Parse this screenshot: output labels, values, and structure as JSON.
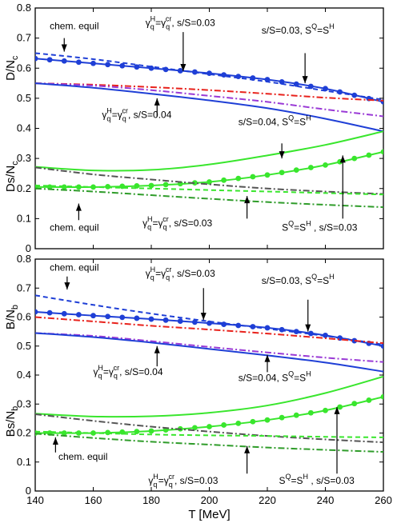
{
  "chart_data": [
    {
      "type": "line",
      "panel": "top",
      "xlim": [
        140,
        260
      ],
      "ylim": [
        0,
        0.8
      ],
      "xticks": [
        140,
        160,
        180,
        200,
        220,
        240,
        260
      ],
      "yticks": [
        0,
        0.1,
        0.2,
        0.3,
        0.4,
        0.5,
        0.6,
        0.7,
        0.8
      ],
      "ylabel_upper": "D/N",
      "ylabel_upper_sub": "c",
      "ylabel_lower": "Ds/N",
      "ylabel_lower_sub": "c",
      "show_xticklabels": false,
      "series": [
        {
          "color": "#1f3fd6",
          "dash": "6,4",
          "markers": false,
          "x": [
            140,
            160,
            180,
            200,
            220,
            240,
            260
          ],
          "y": [
            0.65,
            0.63,
            0.605,
            0.58,
            0.555,
            0.525,
            0.495
          ]
        },
        {
          "color": "#1f3fd6",
          "dash": "",
          "markers": true,
          "x": [
            140,
            160,
            180,
            200,
            220,
            240,
            260
          ],
          "y": [
            0.632,
            0.616,
            0.6,
            0.583,
            0.562,
            0.532,
            0.488
          ]
        },
        {
          "color": "#e8221c",
          "dash": "8,3,2,3",
          "markers": false,
          "x": [
            140,
            160,
            180,
            200,
            220,
            240,
            260
          ],
          "y": [
            0.55,
            0.545,
            0.537,
            0.527,
            0.515,
            0.502,
            0.492
          ]
        },
        {
          "color": "#9a3ad6",
          "dash": "8,3,2,3",
          "markers": false,
          "x": [
            140,
            160,
            180,
            200,
            220,
            240,
            260
          ],
          "y": [
            0.55,
            0.542,
            0.527,
            0.508,
            0.488,
            0.463,
            0.44
          ]
        },
        {
          "color": "#1f3fd6",
          "dash": "",
          "markers": false,
          "x": [
            140,
            160,
            180,
            200,
            220,
            240,
            260
          ],
          "y": [
            0.55,
            0.535,
            0.515,
            0.493,
            0.467,
            0.432,
            0.39
          ]
        },
        {
          "color": "#39e62d",
          "dash": "",
          "markers": false,
          "x": [
            140,
            160,
            180,
            200,
            220,
            240,
            260
          ],
          "y": [
            0.272,
            0.26,
            0.262,
            0.28,
            0.31,
            0.345,
            0.39
          ]
        },
        {
          "color": "#39e62d",
          "dash": "",
          "markers": true,
          "x": [
            140,
            160,
            180,
            200,
            220,
            240,
            260
          ],
          "y": [
            0.205,
            0.205,
            0.21,
            0.222,
            0.245,
            0.278,
            0.322
          ]
        },
        {
          "color": "#555555",
          "dash": "8,3,2,3",
          "markers": false,
          "x": [
            140,
            160,
            180,
            200,
            220,
            240,
            260
          ],
          "y": [
            0.27,
            0.247,
            0.23,
            0.214,
            0.2,
            0.19,
            0.182
          ]
        },
        {
          "color": "#39e62d",
          "dash": "6,4",
          "markers": false,
          "x": [
            140,
            160,
            180,
            200,
            220,
            240,
            260
          ],
          "y": [
            0.21,
            0.205,
            0.2,
            0.195,
            0.19,
            0.185,
            0.18
          ]
        },
        {
          "color": "#2f9c2a",
          "dash": "8,3,2,3",
          "markers": false,
          "x": [
            140,
            160,
            180,
            200,
            220,
            240,
            260
          ],
          "y": [
            0.2,
            0.19,
            0.178,
            0.166,
            0.155,
            0.146,
            0.138
          ]
        }
      ],
      "annotations": [
        {
          "text": "chem. equil",
          "x": 145,
          "y": 0.73,
          "ax": 150,
          "ay1": 0.7,
          "ay2": 0.655
        },
        {
          "text": "γ_q^H=γ_q^cr, s/S=0.03",
          "x": 178,
          "y": 0.74,
          "ax": 191,
          "ay1": 0.72,
          "ay2": 0.59
        },
        {
          "text": "s/S=0.03, S^Q=S^H",
          "x": 218,
          "y": 0.715,
          "ax": 233,
          "ay1": 0.65,
          "ay2": 0.55
        },
        {
          "text": "γ_q^H=γ_q^cr, s/S=0.04",
          "x": 163,
          "y": 0.435,
          "ax": 182,
          "ay1": 0.44,
          "ay2": 0.5
        },
        {
          "text": "s/S=0.04, S^Q=S^H",
          "x": 210,
          "y": 0.41,
          "ax": 225,
          "ay1": 0.35,
          "ay2": 0.3
        },
        {
          "text": "chem. equil",
          "x": 145,
          "y": 0.06,
          "ax": 155,
          "ay1": 0.095,
          "ay2": 0.15
        },
        {
          "text": "γ_q^H=γ_q^cr, s/S=0.03",
          "x": 177,
          "y": 0.075,
          "ax": 213,
          "ay1": 0.1,
          "ay2": 0.175
        },
        {
          "text": "S^Q=S^H , s/S=0.03",
          "x": 225,
          "y": 0.06,
          "ax": 246,
          "ay1": 0.1,
          "ay2": 0.31
        }
      ]
    },
    {
      "type": "line",
      "panel": "bottom",
      "xlim": [
        140,
        260
      ],
      "ylim": [
        0,
        0.8
      ],
      "xticks": [
        140,
        160,
        180,
        200,
        220,
        240,
        260
      ],
      "yticks": [
        0,
        0.1,
        0.2,
        0.3,
        0.4,
        0.5,
        0.6,
        0.7,
        0.8
      ],
      "ylabel_upper": "B/N",
      "ylabel_upper_sub": "b",
      "ylabel_lower": "Bs/N",
      "ylabel_lower_sub": "b",
      "xlabel": "T [MeV]",
      "show_xticklabels": true,
      "series": [
        {
          "color": "#1f3fd6",
          "dash": "6,4",
          "markers": false,
          "x": [
            140,
            160,
            180,
            200,
            220,
            240,
            260
          ],
          "y": [
            0.675,
            0.642,
            0.612,
            0.585,
            0.56,
            0.535,
            0.505
          ]
        },
        {
          "color": "#1f3fd6",
          "dash": "",
          "markers": true,
          "x": [
            140,
            160,
            180,
            200,
            220,
            240,
            260
          ],
          "y": [
            0.618,
            0.605,
            0.593,
            0.579,
            0.563,
            0.537,
            0.5
          ]
        },
        {
          "color": "#e8221c",
          "dash": "8,3,2,3",
          "markers": false,
          "x": [
            140,
            160,
            180,
            200,
            220,
            240,
            260
          ],
          "y": [
            0.6,
            0.585,
            0.57,
            0.557,
            0.543,
            0.527,
            0.51
          ]
        },
        {
          "color": "#9a3ad6",
          "dash": "8,3,2,3",
          "markers": false,
          "x": [
            140,
            160,
            180,
            200,
            220,
            240,
            260
          ],
          "y": [
            0.545,
            0.535,
            0.517,
            0.497,
            0.478,
            0.46,
            0.445
          ]
        },
        {
          "color": "#1f3fd6",
          "dash": "",
          "markers": false,
          "x": [
            140,
            160,
            180,
            200,
            220,
            240,
            260
          ],
          "y": [
            0.545,
            0.531,
            0.512,
            0.49,
            0.468,
            0.443,
            0.412
          ]
        },
        {
          "color": "#39e62d",
          "dash": "",
          "markers": false,
          "x": [
            140,
            160,
            180,
            200,
            220,
            240,
            260
          ],
          "y": [
            0.267,
            0.257,
            0.258,
            0.27,
            0.295,
            0.338,
            0.395
          ]
        },
        {
          "color": "#39e62d",
          "dash": "",
          "markers": true,
          "x": [
            140,
            160,
            180,
            200,
            220,
            240,
            260
          ],
          "y": [
            0.2,
            0.2,
            0.207,
            0.222,
            0.245,
            0.278,
            0.325
          ]
        },
        {
          "color": "#555555",
          "dash": "8,3,2,3",
          "markers": false,
          "x": [
            140,
            160,
            180,
            200,
            220,
            240,
            260
          ],
          "y": [
            0.265,
            0.242,
            0.222,
            0.205,
            0.19,
            0.178,
            0.168
          ]
        },
        {
          "color": "#39e62d",
          "dash": "6,4",
          "markers": false,
          "x": [
            140,
            160,
            180,
            200,
            220,
            240,
            260
          ],
          "y": [
            0.205,
            0.2,
            0.195,
            0.192,
            0.19,
            0.187,
            0.185
          ]
        },
        {
          "color": "#2f9c2a",
          "dash": "8,3,2,3",
          "markers": false,
          "x": [
            140,
            160,
            180,
            200,
            220,
            240,
            260
          ],
          "y": [
            0.198,
            0.183,
            0.17,
            0.16,
            0.15,
            0.142,
            0.135
          ]
        }
      ],
      "annotations": [
        {
          "text": "chem. equil",
          "x": 145,
          "y": 0.76,
          "ax": 151,
          "ay1": 0.74,
          "ay2": 0.695
        },
        {
          "text": "γ_q^H=γ_q^cr, s/S=0.03",
          "x": 178,
          "y": 0.74,
          "ax": 198,
          "ay1": 0.7,
          "ay2": 0.59
        },
        {
          "text": "s/S=0.03, S^Q=S^H",
          "x": 218,
          "y": 0.715,
          "ax": 234,
          "ay1": 0.66,
          "ay2": 0.55
        },
        {
          "text": "γ_q^H=γ_q^cr, s/S=0.04",
          "x": 160,
          "y": 0.4,
          "ax": 182,
          "ay1": 0.43,
          "ay2": 0.5
        },
        {
          "text": "s/S=0.04, S^Q=S^H",
          "x": 210,
          "y": 0.38,
          "ax": 220,
          "ay1": 0.41,
          "ay2": 0.47
        },
        {
          "text": "chem. equil",
          "x": 148,
          "y": 0.107,
          "ax": 147,
          "ay1": 0.133,
          "ay2": 0.185
        },
        {
          "text": "γ_q^H=γ_q^cr, s/S=0.03",
          "x": 179,
          "y": 0.025,
          "ax": 213,
          "ay1": 0.06,
          "ay2": 0.155
        },
        {
          "text": "S^Q=S^H , s/S=0.03",
          "x": 224,
          "y": 0.025,
          "ax": 244,
          "ay1": 0.06,
          "ay2": 0.29
        }
      ]
    }
  ]
}
